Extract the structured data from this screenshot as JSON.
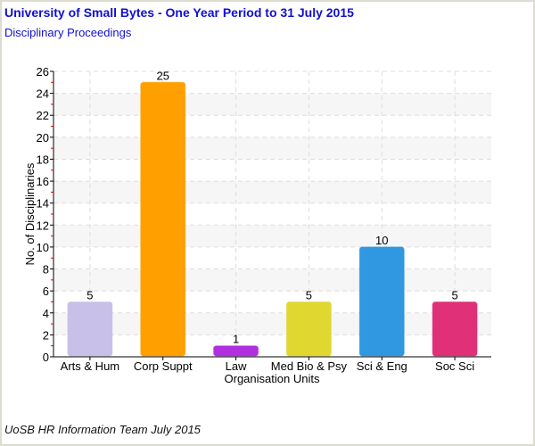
{
  "header": {
    "title": "University of Small Bytes - One Year Period to 31 July 2015",
    "subtitle": "Disciplinary Proceedings"
  },
  "footer": "UoSB HR Information Team July 2015",
  "chart_data": {
    "type": "bar",
    "title": "University of Small Bytes - One Year Period to 31 July 2015",
    "subtitle": "Disciplinary Proceedings",
    "xlabel": "Organisation Units",
    "ylabel": "No. of Disciplinaries",
    "categories": [
      "Arts & Hum",
      "Corp Suppt",
      "Law",
      "Med Bio & Psy",
      "Sci & Eng",
      "Soc Sci"
    ],
    "values": [
      5,
      25,
      1,
      5,
      10,
      5
    ],
    "colors": [
      "#c8c0e8",
      "#ffa000",
      "#b030e0",
      "#e0d830",
      "#3098e0",
      "#e03078"
    ],
    "ylim": [
      0,
      26
    ],
    "yticks": [
      0,
      2,
      4,
      6,
      8,
      10,
      12,
      14,
      16,
      18,
      20,
      22,
      24,
      26
    ],
    "grid": true,
    "legend": "none"
  }
}
